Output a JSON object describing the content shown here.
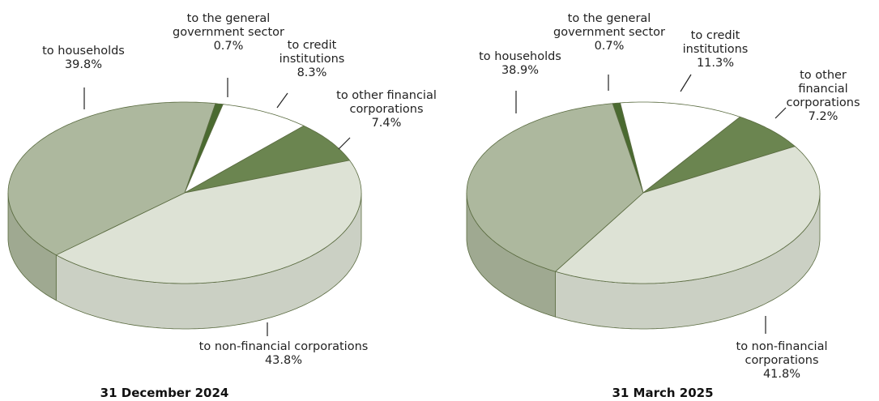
{
  "chart_data": [
    {
      "type": "pie",
      "title": "31 December 2024",
      "categories": [
        "to the general\ngovernment sector",
        "to credit\ninstitutions",
        "to other financial\ncorporations",
        "to non-financial corporations",
        "to households"
      ],
      "values": [
        0.7,
        8.3,
        7.4,
        43.8,
        39.8
      ],
      "value_labels": [
        "0.7%",
        "8.3%",
        "7.4%",
        "43.8%",
        "39.8%"
      ],
      "colors": [
        "#4a6a30",
        "#ffffff",
        "#6b8550",
        "#dde2d5",
        "#adb89e"
      ]
    },
    {
      "type": "pie",
      "title": "31 March 2025",
      "categories": [
        "to the general\ngovernment sector",
        "to credit\ninstitutions",
        "to other financial\ncorporations",
        "to non-financial corporations",
        "to households"
      ],
      "values": [
        0.7,
        11.3,
        7.2,
        41.8,
        38.9
      ],
      "value_labels": [
        "0.7%",
        "11.3%",
        "7.2%",
        "41.8%",
        "38.9%"
      ],
      "colors": [
        "#4a6a30",
        "#ffffff",
        "#6b8550",
        "#dde2d5",
        "#adb89e"
      ]
    }
  ]
}
